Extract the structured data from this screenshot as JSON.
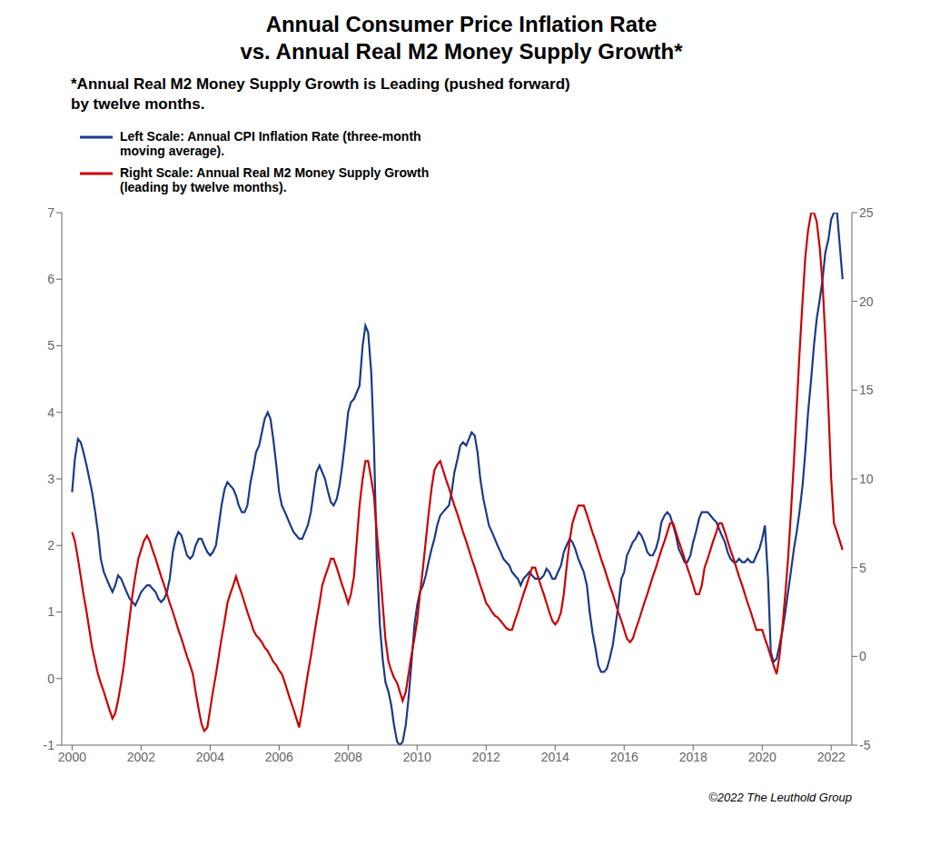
{
  "chart_data": {
    "type": "line",
    "title": "Annual Consumer Price Inflation Rate\nvs. Annual Real M2 Money Supply Growth*",
    "subtitle": "*Annual Real M2 Money Supply Growth is Leading (pushed forward)\nby twelve months.",
    "annotations": [
      "©2022 The Leuthold Group"
    ],
    "legend": "upper left",
    "grid": false,
    "xlim": [
      1999.7,
      2022.6
    ],
    "xticks": [
      2000,
      2002,
      2004,
      2006,
      2008,
      2010,
      2012,
      2014,
      2016,
      2018,
      2020,
      2022
    ],
    "ylim": [
      -1,
      7
    ],
    "yticks": [
      -1,
      0,
      1,
      2,
      3,
      4,
      5,
      6,
      7
    ],
    "y2lim": [
      -5,
      25
    ],
    "y2ticks": [
      -5,
      0,
      5,
      10,
      15,
      20,
      25
    ],
    "x": [
      2000.0,
      2000.08,
      2000.17,
      2000.25,
      2000.33,
      2000.42,
      2000.5,
      2000.58,
      2000.67,
      2000.75,
      2000.83,
      2000.92,
      2001.0,
      2001.08,
      2001.17,
      2001.25,
      2001.33,
      2001.42,
      2001.5,
      2001.58,
      2001.67,
      2001.75,
      2001.83,
      2001.92,
      2002.0,
      2002.08,
      2002.17,
      2002.25,
      2002.33,
      2002.42,
      2002.5,
      2002.58,
      2002.67,
      2002.75,
      2002.83,
      2002.92,
      2003.0,
      2003.08,
      2003.17,
      2003.25,
      2003.33,
      2003.42,
      2003.5,
      2003.58,
      2003.67,
      2003.75,
      2003.83,
      2003.92,
      2004.0,
      2004.08,
      2004.17,
      2004.25,
      2004.33,
      2004.42,
      2004.5,
      2004.58,
      2004.67,
      2004.75,
      2004.83,
      2004.92,
      2005.0,
      2005.08,
      2005.17,
      2005.25,
      2005.33,
      2005.42,
      2005.5,
      2005.58,
      2005.67,
      2005.75,
      2005.83,
      2005.92,
      2006.0,
      2006.08,
      2006.17,
      2006.25,
      2006.33,
      2006.42,
      2006.5,
      2006.58,
      2006.67,
      2006.75,
      2006.83,
      2006.92,
      2007.0,
      2007.08,
      2007.17,
      2007.25,
      2007.33,
      2007.42,
      2007.5,
      2007.58,
      2007.67,
      2007.75,
      2007.83,
      2007.92,
      2008.0,
      2008.08,
      2008.17,
      2008.25,
      2008.33,
      2008.42,
      2008.5,
      2008.58,
      2008.67,
      2008.75,
      2008.83,
      2008.92,
      2009.0,
      2009.08,
      2009.17,
      2009.25,
      2009.33,
      2009.42,
      2009.5,
      2009.58,
      2009.67,
      2009.75,
      2009.83,
      2009.92,
      2010.0,
      2010.08,
      2010.17,
      2010.25,
      2010.33,
      2010.42,
      2010.5,
      2010.58,
      2010.67,
      2010.75,
      2010.83,
      2010.92,
      2011.0,
      2011.08,
      2011.17,
      2011.25,
      2011.33,
      2011.42,
      2011.5,
      2011.58,
      2011.67,
      2011.75,
      2011.83,
      2011.92,
      2012.0,
      2012.08,
      2012.17,
      2012.25,
      2012.33,
      2012.42,
      2012.5,
      2012.58,
      2012.67,
      2012.75,
      2012.83,
      2012.92,
      2013.0,
      2013.08,
      2013.17,
      2013.25,
      2013.33,
      2013.42,
      2013.5,
      2013.58,
      2013.67,
      2013.75,
      2013.83,
      2013.92,
      2014.0,
      2014.08,
      2014.17,
      2014.25,
      2014.33,
      2014.42,
      2014.5,
      2014.58,
      2014.67,
      2014.75,
      2014.83,
      2014.92,
      2015.0,
      2015.08,
      2015.17,
      2015.25,
      2015.33,
      2015.42,
      2015.5,
      2015.58,
      2015.67,
      2015.75,
      2015.83,
      2015.92,
      2016.0,
      2016.08,
      2016.17,
      2016.25,
      2016.33,
      2016.42,
      2016.5,
      2016.58,
      2016.67,
      2016.75,
      2016.83,
      2016.92,
      2017.0,
      2017.08,
      2017.17,
      2017.25,
      2017.33,
      2017.42,
      2017.5,
      2017.58,
      2017.67,
      2017.75,
      2017.83,
      2017.92,
      2018.0,
      2018.08,
      2018.17,
      2018.25,
      2018.33,
      2018.42,
      2018.5,
      2018.58,
      2018.67,
      2018.75,
      2018.83,
      2018.92,
      2019.0,
      2019.08,
      2019.17,
      2019.25,
      2019.33,
      2019.42,
      2019.5,
      2019.58,
      2019.67,
      2019.75,
      2019.83,
      2019.92,
      2020.0,
      2020.08,
      2020.17,
      2020.25,
      2020.33,
      2020.42,
      2020.5,
      2020.58,
      2020.67,
      2020.75,
      2020.83,
      2020.92,
      2021.0,
      2021.08,
      2021.17,
      2021.25,
      2021.33,
      2021.42,
      2021.5,
      2021.58,
      2021.67,
      2021.75,
      2021.83,
      2021.92,
      2022.0,
      2022.08,
      2022.17,
      2022.25,
      2022.33
    ],
    "series": [
      {
        "name": "Left Scale: Annual CPI Inflation Rate (three-month\nmoving average).",
        "color": "#1a3a8a",
        "values": [
          2.8,
          3.3,
          3.6,
          3.55,
          3.4,
          3.2,
          3.0,
          2.8,
          2.5,
          2.2,
          1.8,
          1.6,
          1.5,
          1.4,
          1.3,
          1.4,
          1.55,
          1.5,
          1.4,
          1.3,
          1.2,
          1.15,
          1.1,
          1.2,
          1.3,
          1.35,
          1.4,
          1.4,
          1.35,
          1.3,
          1.2,
          1.15,
          1.2,
          1.3,
          1.5,
          1.9,
          2.1,
          2.2,
          2.15,
          2.0,
          1.85,
          1.8,
          1.85,
          2.0,
          2.1,
          2.1,
          2.0,
          1.9,
          1.85,
          1.9,
          2.0,
          2.3,
          2.6,
          2.85,
          2.95,
          2.9,
          2.85,
          2.75,
          2.6,
          2.5,
          2.5,
          2.6,
          2.95,
          3.15,
          3.4,
          3.5,
          3.7,
          3.9,
          4.0,
          3.9,
          3.6,
          3.2,
          2.8,
          2.6,
          2.5,
          2.4,
          2.3,
          2.2,
          2.15,
          2.1,
          2.1,
          2.2,
          2.3,
          2.5,
          2.8,
          3.1,
          3.2,
          3.1,
          3.0,
          2.8,
          2.65,
          2.6,
          2.7,
          2.9,
          3.2,
          3.6,
          4.0,
          4.15,
          4.2,
          4.3,
          4.4,
          5.0,
          5.3,
          5.2,
          4.6,
          3.5,
          1.8,
          0.8,
          0.3,
          -0.05,
          -0.2,
          -0.4,
          -0.7,
          -0.95,
          -1.0,
          -0.95,
          -0.7,
          -0.3,
          0.2,
          0.8,
          1.1,
          1.3,
          1.4,
          1.55,
          1.75,
          1.95,
          2.1,
          2.3,
          2.45,
          2.5,
          2.55,
          2.6,
          2.8,
          3.1,
          3.3,
          3.5,
          3.55,
          3.5,
          3.6,
          3.7,
          3.65,
          3.4,
          3.0,
          2.7,
          2.5,
          2.3,
          2.2,
          2.1,
          2.0,
          1.9,
          1.8,
          1.75,
          1.7,
          1.6,
          1.55,
          1.5,
          1.4,
          1.5,
          1.55,
          1.6,
          1.55,
          1.5,
          1.5,
          1.5,
          1.55,
          1.65,
          1.6,
          1.5,
          1.5,
          1.6,
          1.7,
          1.9,
          2.0,
          2.1,
          2.05,
          1.95,
          1.8,
          1.7,
          1.6,
          1.4,
          1.0,
          0.7,
          0.45,
          0.2,
          0.1,
          0.1,
          0.15,
          0.3,
          0.5,
          0.8,
          1.1,
          1.5,
          1.6,
          1.85,
          1.95,
          2.05,
          2.1,
          2.2,
          2.15,
          2.05,
          1.9,
          1.85,
          1.85,
          1.95,
          2.1,
          2.35,
          2.45,
          2.5,
          2.45,
          2.3,
          2.15,
          1.95,
          1.85,
          1.75,
          1.75,
          1.85,
          2.05,
          2.2,
          2.4,
          2.5,
          2.5,
          2.5,
          2.45,
          2.4,
          2.35,
          2.25,
          2.15,
          2.05,
          1.9,
          1.8,
          1.75,
          1.75,
          1.8,
          1.75,
          1.75,
          1.8,
          1.75,
          1.75,
          1.85,
          1.95,
          2.1,
          2.3,
          1.5,
          0.4,
          0.25,
          0.3,
          0.5,
          0.7,
          1.0,
          1.3,
          1.6,
          1.95,
          2.2,
          2.5,
          2.9,
          3.4,
          4.0,
          4.5,
          5.0,
          5.4,
          5.7,
          6.0,
          6.4,
          6.6,
          6.9,
          7.0,
          7.0,
          6.5,
          6.0
        ]
      },
      {
        "name": "Right Scale: Annual Real M2 Money Supply Growth\n(leading by twelve months).",
        "color": "#cc0000",
        "axis": "y2",
        "values": [
          7.0,
          6.5,
          5.5,
          4.5,
          3.5,
          2.5,
          1.5,
          0.5,
          -0.3,
          -1.0,
          -1.5,
          -2.0,
          -2.5,
          -3.0,
          -3.5,
          -3.2,
          -2.5,
          -1.5,
          -0.5,
          0.8,
          2.2,
          3.5,
          4.5,
          5.5,
          6.0,
          6.5,
          6.8,
          6.5,
          6.0,
          5.5,
          5.0,
          4.5,
          4.0,
          3.5,
          3.0,
          2.5,
          2.0,
          1.5,
          1.0,
          0.5,
          0.0,
          -0.5,
          -1.0,
          -2.0,
          -3.0,
          -3.8,
          -4.2,
          -4.0,
          -3.0,
          -2.0,
          -1.0,
          0.0,
          1.0,
          2.0,
          3.0,
          3.5,
          4.0,
          4.5,
          4.0,
          3.5,
          3.0,
          2.5,
          2.0,
          1.5,
          1.2,
          1.0,
          0.8,
          0.5,
          0.3,
          0.0,
          -0.3,
          -0.5,
          -0.8,
          -1.0,
          -1.5,
          -2.0,
          -2.5,
          -3.0,
          -3.5,
          -4.0,
          -3.0,
          -2.0,
          -1.0,
          0.0,
          1.0,
          2.0,
          3.0,
          4.0,
          4.5,
          5.0,
          5.5,
          5.5,
          5.0,
          4.5,
          4.0,
          3.5,
          3.0,
          3.5,
          4.5,
          6.5,
          8.5,
          10.0,
          11.0,
          11.0,
          10.0,
          9.0,
          7.0,
          5.0,
          3.0,
          1.0,
          -0.3,
          -0.8,
          -1.2,
          -1.5,
          -2.0,
          -2.5,
          -2.0,
          -1.0,
          0.0,
          1.0,
          2.0,
          3.5,
          5.0,
          6.5,
          8.0,
          9.5,
          10.5,
          10.8,
          11.0,
          10.5,
          10.0,
          9.5,
          9.0,
          8.5,
          8.0,
          7.5,
          7.0,
          6.5,
          6.0,
          5.5,
          5.0,
          4.5,
          4.0,
          3.5,
          3.0,
          2.8,
          2.5,
          2.3,
          2.2,
          2.0,
          1.8,
          1.6,
          1.5,
          1.5,
          2.0,
          2.5,
          3.0,
          3.5,
          4.0,
          4.5,
          5.0,
          5.0,
          4.5,
          4.0,
          3.5,
          3.0,
          2.5,
          2.0,
          1.8,
          2.0,
          2.5,
          3.5,
          5.0,
          6.5,
          7.5,
          8.0,
          8.5,
          8.5,
          8.5,
          8.0,
          7.5,
          7.0,
          6.5,
          6.0,
          5.5,
          5.0,
          4.5,
          4.0,
          3.5,
          3.0,
          2.5,
          2.0,
          1.5,
          1.0,
          0.8,
          1.0,
          1.5,
          2.0,
          2.5,
          3.0,
          3.5,
          4.0,
          4.5,
          5.0,
          5.5,
          6.0,
          6.5,
          7.0,
          7.5,
          7.5,
          7.0,
          6.5,
          6.0,
          5.5,
          5.0,
          4.5,
          4.0,
          3.5,
          3.5,
          4.0,
          5.0,
          5.5,
          6.0,
          6.5,
          7.0,
          7.5,
          7.5,
          7.0,
          6.5,
          6.0,
          5.5,
          5.0,
          4.5,
          4.0,
          3.5,
          3.0,
          2.5,
          2.0,
          1.5,
          1.5,
          1.5,
          1.0,
          0.5,
          0.0,
          -0.5,
          -1.0,
          0.0,
          1.5,
          3.5,
          5.5,
          8.0,
          11.0,
          14.0,
          17.0,
          20.0,
          22.5,
          24.0,
          25.0,
          25.0,
          24.5,
          23.0,
          21.0,
          18.0,
          14.0,
          10.0,
          7.5,
          7.0,
          6.5,
          6.0
        ]
      }
    ]
  }
}
